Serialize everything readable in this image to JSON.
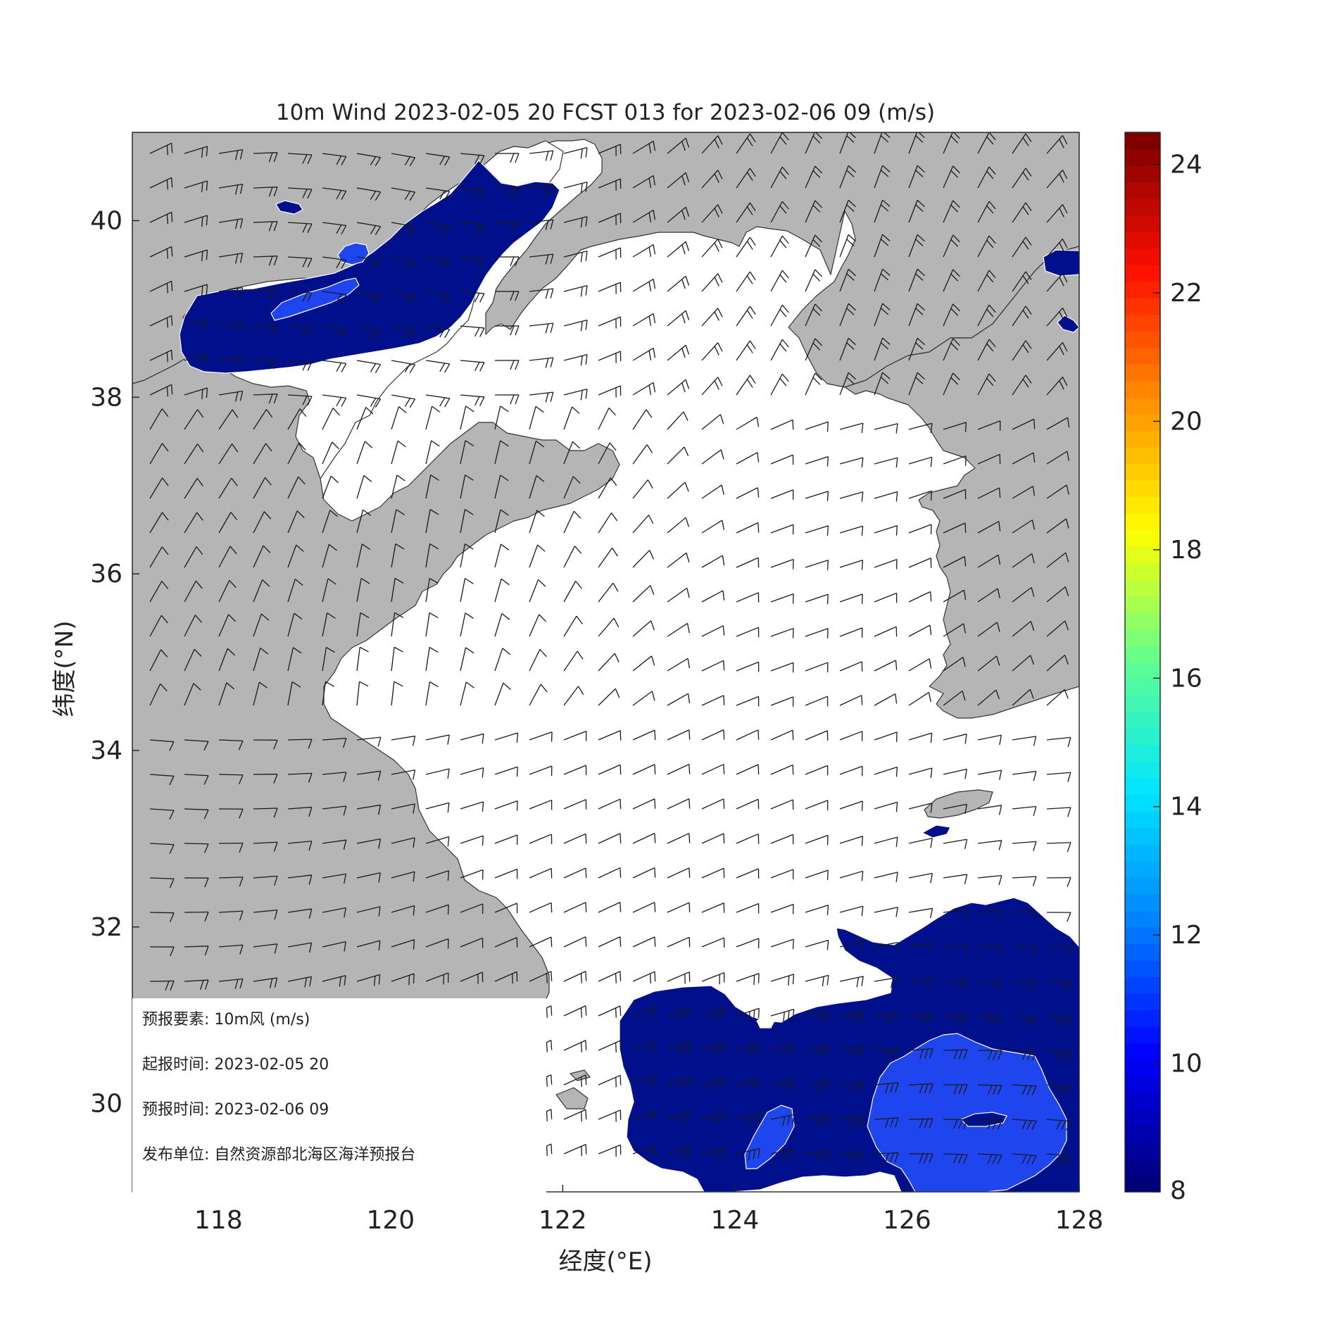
{
  "title": "10m Wind 2023-02-05 20 FCST 013 for 2023-02-06 09 (m/s)",
  "x_axis": {
    "label": "经度(°E)",
    "ticks": [
      "118",
      "120",
      "122",
      "124",
      "126",
      "128"
    ],
    "range": [
      117,
      128
    ]
  },
  "y_axis": {
    "label": "纬度(°N)",
    "ticks": [
      "30",
      "32",
      "34",
      "36",
      "38",
      "40"
    ],
    "range": [
      29,
      41
    ]
  },
  "colorbar": {
    "ticks": [
      "8",
      "10",
      "12",
      "14",
      "16",
      "18",
      "20",
      "22",
      "24"
    ],
    "range": [
      8,
      24.5
    ],
    "stops": [
      "#00007a",
      "#0000ff",
      "#0080ff",
      "#00e5ff",
      "#60ff90",
      "#ffff00",
      "#ff9000",
      "#ff1000",
      "#800000"
    ]
  },
  "colors": {
    "land": "#b5b5b5",
    "sea": "#ffffff",
    "band_8_10": "#000f8c",
    "band_10_12": "#1f45ee",
    "band_12": "#3a75f5",
    "barb": "#1a1a1a"
  },
  "legend": {
    "element_label": "预报要素:",
    "element_value": "10m风 (m/s)",
    "init_label": "起报时间:",
    "init_value": "2023-02-05 20",
    "valid_label": "预报时间:",
    "valid_value": "2023-02-06 09",
    "issuer_label": "发布单位:",
    "issuer_value": "自然资源部北海区海洋预报台"
  }
}
